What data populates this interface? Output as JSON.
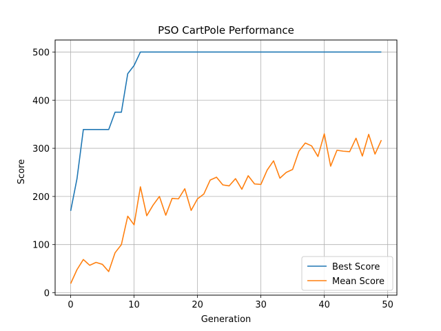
{
  "chart_data": {
    "type": "line",
    "title": "PSO CartPole Performance",
    "xlabel": "Generation",
    "ylabel": "Score",
    "xlim": [
      -2.45,
      51.45
    ],
    "ylim": [
      -5,
      525
    ],
    "xticks": [
      0,
      10,
      20,
      30,
      40,
      50
    ],
    "yticks": [
      0,
      100,
      200,
      300,
      400,
      500
    ],
    "grid": true,
    "legend_position": "lower-right",
    "x": [
      0,
      1,
      2,
      3,
      4,
      5,
      6,
      7,
      8,
      9,
      10,
      11,
      12,
      13,
      14,
      15,
      16,
      17,
      18,
      19,
      20,
      21,
      22,
      23,
      24,
      25,
      26,
      27,
      28,
      29,
      30,
      31,
      32,
      33,
      34,
      35,
      36,
      37,
      38,
      39,
      40,
      41,
      42,
      43,
      44,
      45,
      46,
      47,
      48,
      49
    ],
    "series": [
      {
        "name": "Best Score",
        "color": "#1f77b4",
        "values": [
          170,
          237,
          339,
          339,
          339,
          339,
          339,
          375,
          375,
          455,
          472,
          500,
          500,
          500,
          500,
          500,
          500,
          500,
          500,
          500,
          500,
          500,
          500,
          500,
          500,
          500,
          500,
          500,
          500,
          500,
          500,
          500,
          500,
          500,
          500,
          500,
          500,
          500,
          500,
          500,
          500,
          500,
          500,
          500,
          500,
          500,
          500,
          500,
          500,
          500
        ]
      },
      {
        "name": "Mean Score",
        "color": "#ff7f0e",
        "values": [
          19,
          48,
          69,
          57,
          63,
          59,
          44,
          83,
          100,
          159,
          141,
          220,
          160,
          182,
          200,
          161,
          196,
          195,
          216,
          171,
          195,
          205,
          234,
          240,
          224,
          222,
          237,
          215,
          243,
          226,
          225,
          255,
          274,
          238,
          250,
          256,
          294,
          311,
          305,
          283,
          330,
          263,
          296,
          294,
          293,
          321,
          284,
          329,
          288,
          317
        ]
      }
    ]
  }
}
